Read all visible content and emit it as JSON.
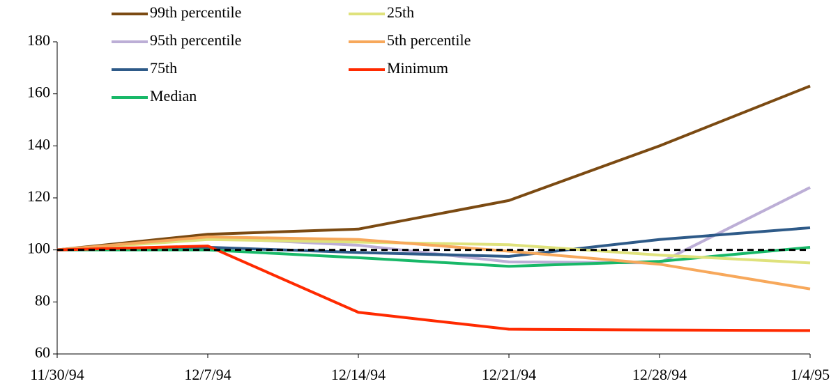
{
  "chart_data": {
    "type": "line",
    "categories": [
      "11/30/94",
      "12/7/94",
      "12/14/94",
      "12/21/94",
      "12/28/94",
      "1/4/95"
    ],
    "series": [
      {
        "name": "99th percentile",
        "color": "#7b4a12",
        "values": [
          100,
          106,
          108,
          119,
          140,
          163
        ]
      },
      {
        "name": "95th percentile",
        "color": "#bcaed6",
        "values": [
          100,
          104.7,
          101.8,
          95.4,
          95,
          124
        ]
      },
      {
        "name": "75th",
        "color": "#2e5a88",
        "values": [
          100,
          101,
          99,
          97.5,
          104,
          108.5
        ]
      },
      {
        "name": "Median",
        "color": "#18b868",
        "values": [
          100,
          100,
          97,
          93.7,
          95.6,
          101
        ]
      },
      {
        "name": "25th",
        "color": "#dfe27c",
        "values": [
          100,
          104,
          103,
          102,
          98,
          95
        ]
      },
      {
        "name": "5th percentile",
        "color": "#f7a85b",
        "values": [
          100,
          105,
          104,
          99.5,
          94.5,
          85
        ]
      },
      {
        "name": "Minimum",
        "color": "#ff2a00",
        "values": [
          100,
          101.5,
          76,
          69.5,
          69.2,
          69
        ]
      }
    ],
    "reference_value": 100,
    "ylim": [
      60,
      180
    ],
    "yticks": [
      60,
      80,
      100,
      120,
      140,
      160,
      180
    ]
  }
}
